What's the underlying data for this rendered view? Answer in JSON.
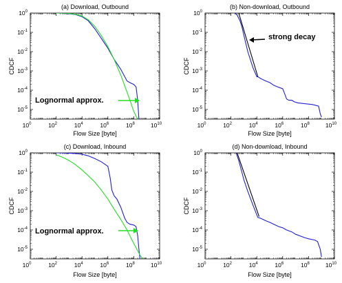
{
  "charts": [
    {
      "title": "(a) Download, Outbound",
      "xlabel": "Flow Size [byte]",
      "ylabel": "CDCF",
      "annotation": {
        "text": "Lognormal approx.",
        "arrow_color": "#22dd22",
        "points_to": [
          30000000.0,
          0.0001
        ]
      }
    },
    {
      "title": "(b) Non-download, Outbound",
      "xlabel": "Flow Size [byte]",
      "ylabel": "CDCF",
      "annotation": {
        "text": "strong decay",
        "arrow_color": "#000000",
        "points_to": [
          1000,
          0.05
        ]
      }
    },
    {
      "title": "(c) Download, Inbound",
      "xlabel": "Flow Size [byte]",
      "ylabel": "CDCF",
      "annotation": {
        "text": "Lognormal approx.",
        "arrow_color": "#22dd22",
        "points_to": [
          30000000.0,
          0.0001
        ]
      }
    },
    {
      "title": "(d) Non-download, Inbound",
      "xlabel": "Flow Size [byte]",
      "ylabel": "CDCF",
      "annotation": null
    }
  ],
  "chart_data": [
    {
      "type": "line",
      "x_scale": "log",
      "y_scale": "log",
      "xlim": [
        1,
        10000000000.0
      ],
      "ylim": [
        3.16e-06,
        1
      ],
      "x_ticks": [
        1,
        100,
        10000,
        1000000,
        100000000,
        10000000000
      ],
      "y_ticks": [
        1e-05,
        0.0001,
        0.001,
        0.01,
        0.1,
        1
      ],
      "series": [
        {
          "color": "#1f1fd6",
          "x": [
            100,
            300,
            1000,
            3000,
            10000,
            30000,
            100000,
            300000,
            1000000,
            3000000,
            10000000,
            20000000,
            30000000,
            50000000,
            70000000,
            100000000,
            150000000,
            200000000,
            250000000
          ],
          "y": [
            1,
            0.98,
            0.93,
            0.85,
            0.65,
            0.4,
            0.15,
            0.05,
            0.015,
            0.004,
            0.0012,
            0.0005,
            0.0003,
            0.00025,
            0.00022,
            0.0002,
            0.00015,
            3e-05,
            3e-06
          ]
        },
        {
          "color": "#22dd22",
          "x": [
            100,
            300,
            1000,
            3000,
            10000,
            30000,
            100000,
            300000,
            1000000,
            3000000,
            10000000,
            30000000,
            100000000,
            200000000
          ],
          "y": [
            1,
            0.99,
            0.96,
            0.88,
            0.7,
            0.45,
            0.2,
            0.07,
            0.018,
            0.004,
            0.0006,
            8e-05,
            8e-06,
            3e-06
          ]
        }
      ]
    },
    {
      "type": "line",
      "x_scale": "log",
      "y_scale": "log",
      "xlim": [
        1,
        10000000000.0
      ],
      "ylim": [
        3.16e-06,
        1
      ],
      "x_ticks": [
        1,
        100,
        10000,
        1000000,
        100000000,
        10000000000
      ],
      "y_ticks": [
        1e-05,
        0.0001,
        0.001,
        0.01,
        0.1,
        1
      ],
      "series": [
        {
          "color": "#1f1fd6",
          "x": [
            200,
            300,
            500,
            700,
            1000,
            2000,
            5000,
            10000,
            12000,
            20000,
            50000,
            100000,
            200000,
            400000,
            700000,
            1000000,
            1500000,
            2000000,
            3000000,
            5000000,
            8000000,
            15000000.0,
            50000000.0,
            200000000.0,
            600000000.0,
            800000000.0,
            1000000000.0
          ],
          "y": [
            1,
            0.8,
            0.4,
            0.2,
            0.07,
            0.01,
            0.0015,
            0.0005,
            0.0005,
            0.0004,
            0.0003,
            0.00025,
            0.00018,
            0.00015,
            0.00013,
            0.00012,
            6e-05,
            3.5e-05,
            3e-05,
            3e-05,
            2.5e-05,
            2.2e-05,
            2e-05,
            1.8e-05,
            1.5e-05,
            6e-06,
            4e-06
          ]
        },
        {
          "color": "#000000",
          "x": [
            400,
            12000
          ],
          "y": [
            1,
            0.0005
          ]
        }
      ]
    },
    {
      "type": "line",
      "x_scale": "log",
      "y_scale": "log",
      "xlim": [
        1,
        10000000000.0
      ],
      "ylim": [
        3.16e-06,
        1
      ],
      "x_ticks": [
        1,
        100,
        10000,
        1000000,
        100000000,
        10000000000
      ],
      "y_ticks": [
        1e-05,
        0.0001,
        0.001,
        0.01,
        0.1,
        1
      ],
      "series": [
        {
          "color": "#1f1fd6",
          "x": [
            100,
            300,
            1000,
            3000,
            10000,
            30000,
            100000,
            300000,
            1000000,
            1500000,
            2000000,
            3000000,
            5000000,
            10000000,
            20000000,
            30000000,
            50000000,
            100000000,
            150000000,
            200000000,
            250000000,
            300000000
          ],
          "y": [
            1,
            0.99,
            0.97,
            0.93,
            0.85,
            0.7,
            0.5,
            0.35,
            0.2,
            0.05,
            0.012,
            0.006,
            0.004,
            0.0015,
            0.0004,
            0.00025,
            0.0002,
            0.00018,
            0.00015,
            5e-05,
            1e-05,
            3e-06
          ]
        },
        {
          "color": "#22dd22",
          "x": [
            100,
            300,
            1000,
            3000,
            10000,
            30000,
            100000,
            300000,
            1000000,
            3000000,
            10000000,
            30000000,
            100000000,
            300000000,
            500000000
          ],
          "y": [
            0.8,
            0.6,
            0.4,
            0.25,
            0.13,
            0.065,
            0.03,
            0.012,
            0.004,
            0.0012,
            0.00035,
            0.0001,
            2e-05,
            5e-06,
            3e-06
          ]
        }
      ]
    },
    {
      "type": "line",
      "x_scale": "log",
      "y_scale": "log",
      "xlim": [
        1,
        10000000000.0
      ],
      "ylim": [
        3.16e-06,
        1
      ],
      "x_ticks": [
        1,
        100,
        10000,
        1000000,
        100000000,
        10000000000
      ],
      "y_ticks": [
        1e-05,
        0.0001,
        0.001,
        0.01,
        0.1,
        1
      ],
      "series": [
        {
          "color": "#1f1fd6",
          "x": [
            250,
            400,
            700,
            1000,
            2000,
            5000,
            10000,
            12000,
            20000,
            50000,
            100000,
            200000,
            500000,
            1000000,
            2000000,
            5000000,
            10000000.0,
            50000000.0,
            100000000.0,
            300000000.0,
            500000000.0,
            800000000.0,
            1000000000.0
          ],
          "y": [
            1,
            0.4,
            0.1,
            0.04,
            0.01,
            0.002,
            0.0006,
            0.00045,
            0.0004,
            0.0003,
            0.00025,
            0.0002,
            0.00015,
            0.00013,
            0.0001,
            8e-05,
            6e-05,
            4e-05,
            3.5e-05,
            3e-05,
            2.5e-05,
            1e-05,
            4e-06
          ]
        },
        {
          "color": "#000000",
          "x": [
            300,
            15000
          ],
          "y": [
            1,
            0.0005
          ]
        }
      ]
    }
  ]
}
